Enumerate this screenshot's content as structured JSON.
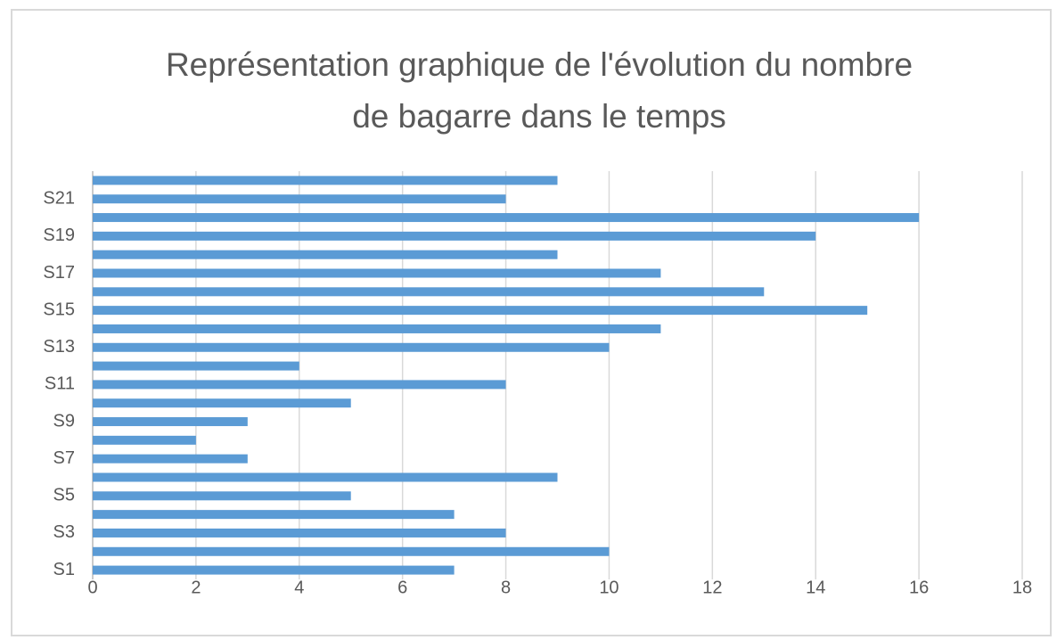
{
  "chart_data": {
    "type": "barh",
    "title": "Représentation graphique de l'évolution du nombre de bagarre dans le temps",
    "categories": [
      "S1",
      null,
      "S3",
      null,
      "S5",
      null,
      "S7",
      null,
      "S9",
      null,
      "S11",
      null,
      "S13",
      null,
      "S15",
      null,
      "S17",
      null,
      "S19",
      null,
      "S21",
      null
    ],
    "values": [
      7,
      10,
      8,
      7,
      5,
      9,
      3,
      2,
      3,
      5,
      8,
      4,
      10,
      11,
      15,
      13,
      11,
      9,
      14,
      16,
      8,
      9
    ],
    "color": "#5b9bd5",
    "xlim": [
      0,
      18
    ],
    "xticks": [
      0,
      2,
      4,
      6,
      8,
      10,
      12,
      14,
      16,
      18
    ],
    "grid": true
  }
}
